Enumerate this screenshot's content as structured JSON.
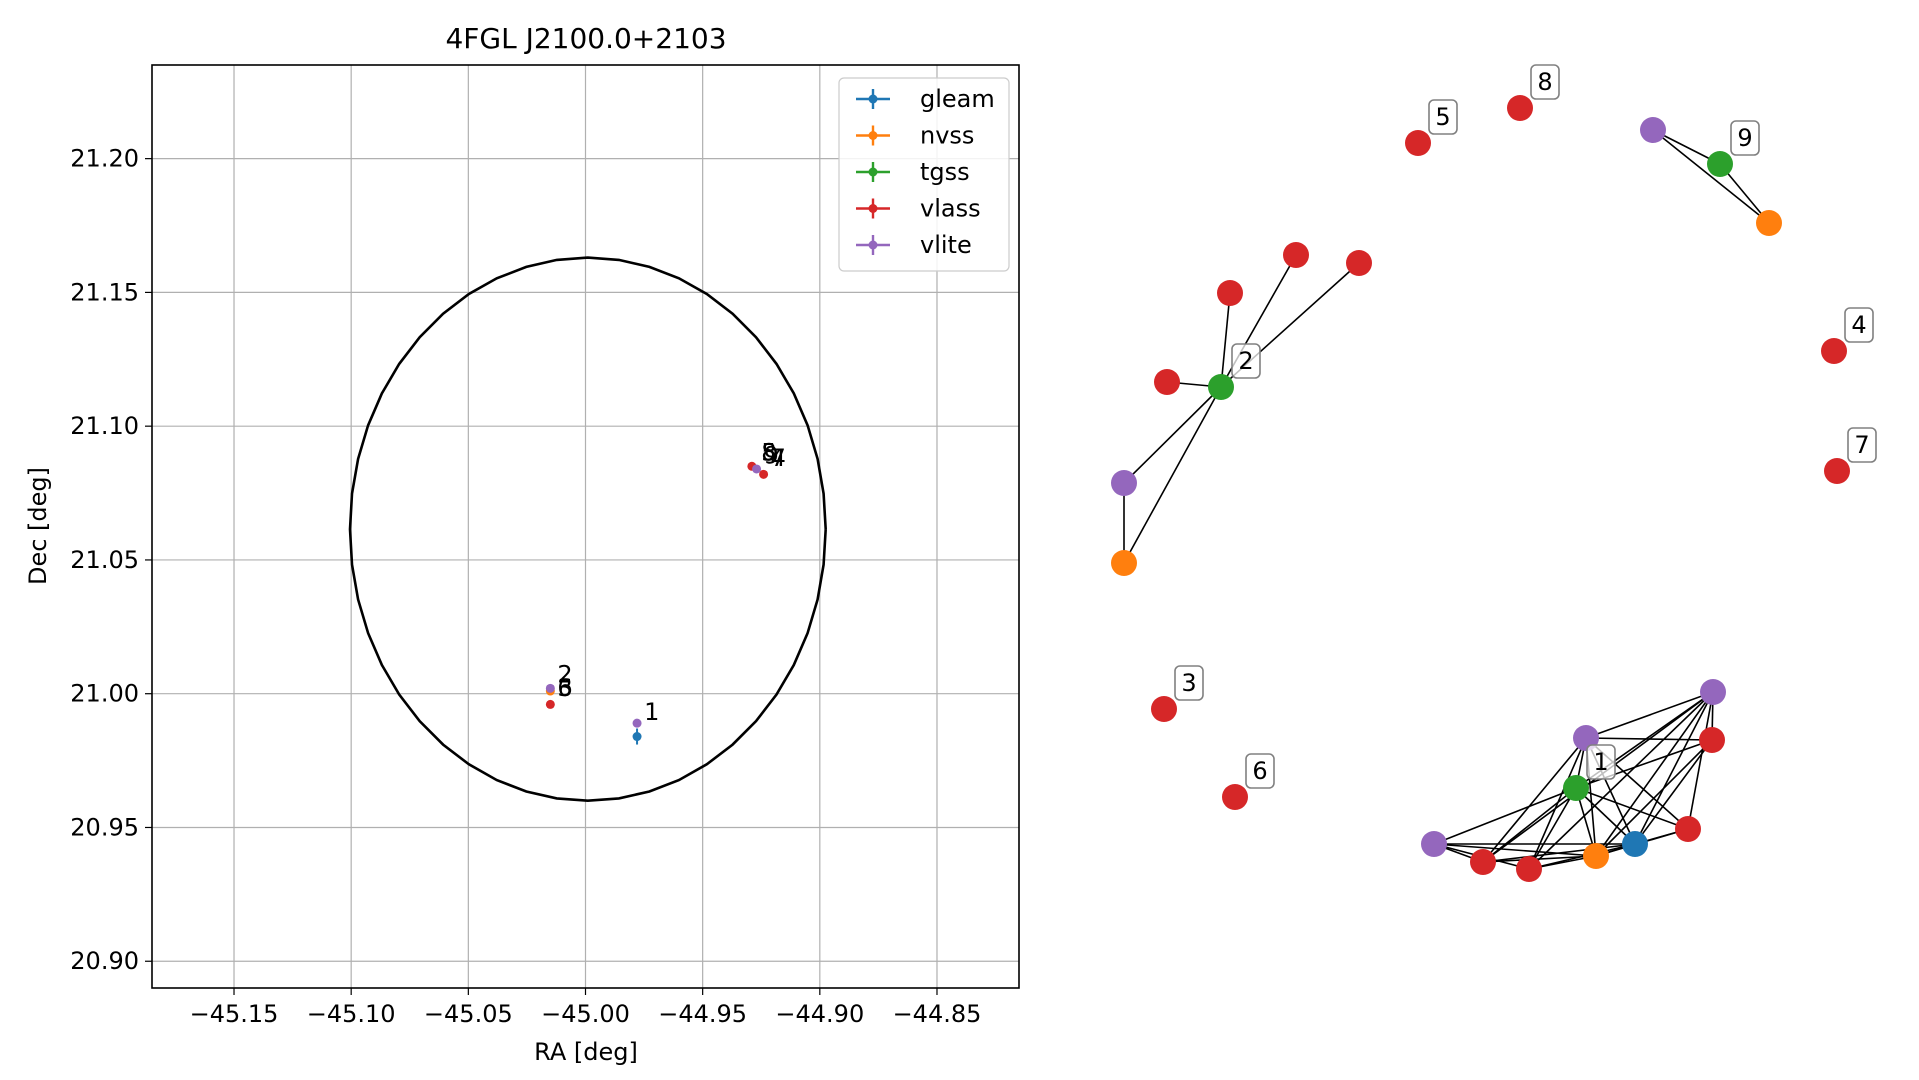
{
  "colors": {
    "gleam": "#1f77b4",
    "nvss": "#ff7f0e",
    "tgss": "#2ca02c",
    "vlass": "#d62728",
    "vlite": "#9467bd",
    "grid": "#b0b0b0",
    "circle": "#000000"
  },
  "chart_data": [
    {
      "type": "scatter",
      "title": "4FGL J2100.0+2103",
      "xlabel": "RA [deg]",
      "ylabel": "Dec [deg]",
      "xlim": [
        -45.185,
        -44.815
      ],
      "ylim": [
        20.89,
        21.235
      ],
      "xticks": [
        -45.15,
        -45.1,
        -45.05,
        -45.0,
        -44.95,
        -44.9,
        -44.85
      ],
      "xtick_labels": [
        "−45.15",
        "−45.10",
        "−45.05",
        "−45.00",
        "−44.95",
        "−44.90",
        "−44.85"
      ],
      "yticks": [
        20.9,
        20.95,
        21.0,
        21.05,
        21.1,
        21.15,
        21.2
      ],
      "ytick_labels": [
        "20.90",
        "20.95",
        "21.00",
        "21.05",
        "21.10",
        "21.15",
        "21.20"
      ],
      "grid": true,
      "legend_position": "top-right",
      "legend": [
        "gleam",
        "nvss",
        "tgss",
        "vlass",
        "vlite"
      ],
      "circle": {
        "center": [
          -44.999,
          21.0615
        ],
        "radius": 0.1015
      },
      "series": [
        {
          "name": "gleam",
          "points": [
            {
              "x": -44.978,
              "y": 20.984,
              "xerr": 0.001,
              "yerr": 0.003
            }
          ]
        },
        {
          "name": "nvss",
          "points": [
            {
              "x": -45.015,
              "y": 21.001,
              "xerr": 0.001,
              "yerr": 0.001
            }
          ]
        },
        {
          "name": "tgss",
          "points": []
        },
        {
          "name": "vlass",
          "points": [
            {
              "x": -45.015,
              "y": 20.996
            },
            {
              "x": -44.929,
              "y": 21.085
            },
            {
              "x": -44.924,
              "y": 21.082
            }
          ]
        },
        {
          "name": "vlite",
          "points": [
            {
              "x": -45.015,
              "y": 21.002
            },
            {
              "x": -44.978,
              "y": 20.989
            },
            {
              "x": -44.927,
              "y": 21.084
            }
          ]
        }
      ],
      "annotations": [
        {
          "text": "1",
          "x": -44.975,
          "y": 20.989
        },
        {
          "text": "2",
          "x": -45.012,
          "y": 21.003
        },
        {
          "text": "3",
          "x": -45.012,
          "y": 20.998
        },
        {
          "text": "6",
          "x": -45.012,
          "y": 20.998
        },
        {
          "text": "5",
          "x": -44.925,
          "y": 21.086
        },
        {
          "text": "8",
          "x": -44.925,
          "y": 21.086
        },
        {
          "text": "9",
          "x": -44.924,
          "y": 21.085
        },
        {
          "text": "4",
          "x": -44.921,
          "y": 21.084
        },
        {
          "text": "7",
          "x": -44.921,
          "y": 21.084
        }
      ]
    },
    {
      "type": "network",
      "nodes": [
        {
          "id": "g1",
          "survey": "gleam"
        },
        {
          "id": "n1",
          "survey": "nvss"
        },
        {
          "id": "t1",
          "survey": "tgss",
          "label": "1"
        },
        {
          "id": "v1",
          "survey": "vlite"
        },
        {
          "id": "v2",
          "survey": "vlite"
        },
        {
          "id": "v3",
          "survey": "vlite"
        },
        {
          "id": "r1",
          "survey": "vlass"
        },
        {
          "id": "r2",
          "survey": "vlass"
        },
        {
          "id": "r3",
          "survey": "vlass"
        },
        {
          "id": "r4",
          "survey": "vlass"
        },
        {
          "id": "t2",
          "survey": "tgss",
          "label": "2"
        },
        {
          "id": "v4",
          "survey": "vlite"
        },
        {
          "id": "n2",
          "survey": "nvss"
        },
        {
          "id": "r5",
          "survey": "vlass"
        },
        {
          "id": "r6",
          "survey": "vlass"
        },
        {
          "id": "r7",
          "survey": "vlass"
        },
        {
          "id": "r8",
          "survey": "vlass"
        },
        {
          "id": "t9",
          "survey": "tgss",
          "label": "9"
        },
        {
          "id": "v5",
          "survey": "vlite"
        },
        {
          "id": "n3",
          "survey": "nvss"
        },
        {
          "id": "s3",
          "survey": "vlass",
          "label": "3"
        },
        {
          "id": "s4",
          "survey": "vlass",
          "label": "4"
        },
        {
          "id": "s5",
          "survey": "vlass",
          "label": "5"
        },
        {
          "id": "s6",
          "survey": "vlass",
          "label": "6"
        },
        {
          "id": "s7",
          "survey": "vlass",
          "label": "7"
        },
        {
          "id": "s8",
          "survey": "vlass",
          "label": "8"
        }
      ],
      "edges": [
        [
          "t1",
          "g1"
        ],
        [
          "t1",
          "n1"
        ],
        [
          "t1",
          "v1"
        ],
        [
          "t1",
          "v2"
        ],
        [
          "t1",
          "v3"
        ],
        [
          "t1",
          "r1"
        ],
        [
          "t1",
          "r2"
        ],
        [
          "t1",
          "r3"
        ],
        [
          "t1",
          "r4"
        ],
        [
          "v1",
          "g1"
        ],
        [
          "v1",
          "n1"
        ],
        [
          "v1",
          "r1"
        ],
        [
          "v1",
          "r2"
        ],
        [
          "v1",
          "r3"
        ],
        [
          "v1",
          "r4"
        ],
        [
          "v1",
          "v2"
        ],
        [
          "v2",
          "g1"
        ],
        [
          "v2",
          "n1"
        ],
        [
          "v2",
          "r1"
        ],
        [
          "v2",
          "r2"
        ],
        [
          "v2",
          "r3"
        ],
        [
          "v2",
          "r4"
        ],
        [
          "v3",
          "g1"
        ],
        [
          "v3",
          "n1"
        ],
        [
          "v3",
          "r1"
        ],
        [
          "v3",
          "r2"
        ],
        [
          "g1",
          "n1"
        ],
        [
          "g1",
          "r1"
        ],
        [
          "g1",
          "r2"
        ],
        [
          "g1",
          "r3"
        ],
        [
          "g1",
          "r4"
        ],
        [
          "n1",
          "r1"
        ],
        [
          "n1",
          "r2"
        ],
        [
          "n1",
          "r3"
        ],
        [
          "n1",
          "r4"
        ],
        [
          "t2",
          "v4"
        ],
        [
          "t2",
          "n2"
        ],
        [
          "t2",
          "r5"
        ],
        [
          "t2",
          "r6"
        ],
        [
          "t2",
          "r7"
        ],
        [
          "t2",
          "r8"
        ],
        [
          "v4",
          "n2"
        ],
        [
          "t9",
          "v5"
        ],
        [
          "t9",
          "n3"
        ],
        [
          "v5",
          "n3"
        ]
      ]
    }
  ]
}
